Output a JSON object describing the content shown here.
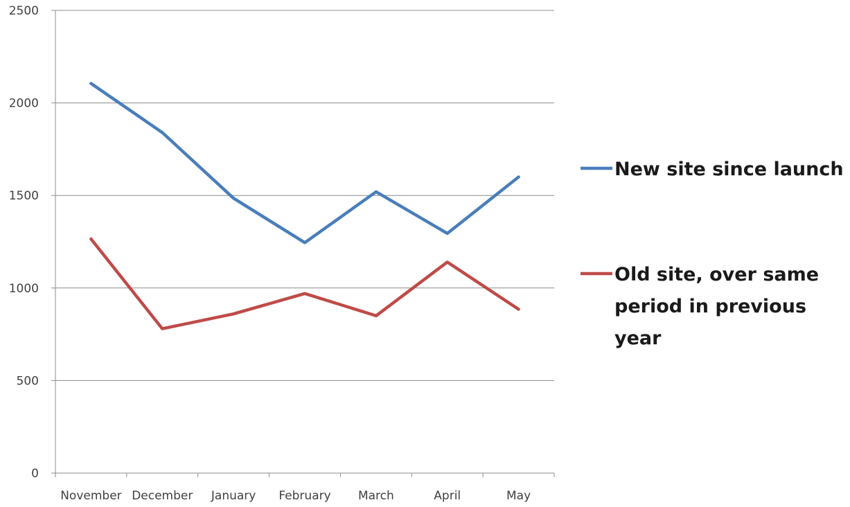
{
  "chart_data": {
    "type": "line",
    "categories": [
      "November",
      "December",
      "January",
      "February",
      "March",
      "April",
      "May"
    ],
    "series": [
      {
        "name": "New site since launch",
        "values": [
          2105,
          1840,
          1485,
          1245,
          1520,
          1295,
          1600
        ],
        "color": "#4a7ebb"
      },
      {
        "name": "Old site, over same period in previous year",
        "legend_lines": [
          "Old site, over same",
          "period in previous",
          "year"
        ],
        "values": [
          1265,
          780,
          860,
          970,
          850,
          1140,
          885
        ],
        "color": "#be4b48"
      }
    ],
    "title": "",
    "xlabel": "",
    "ylabel": "",
    "ylim": [
      0,
      2500
    ],
    "yticks": [
      0,
      500,
      1000,
      1500,
      2000,
      2500
    ],
    "grid": "horizontal",
    "legend_position": "right"
  }
}
